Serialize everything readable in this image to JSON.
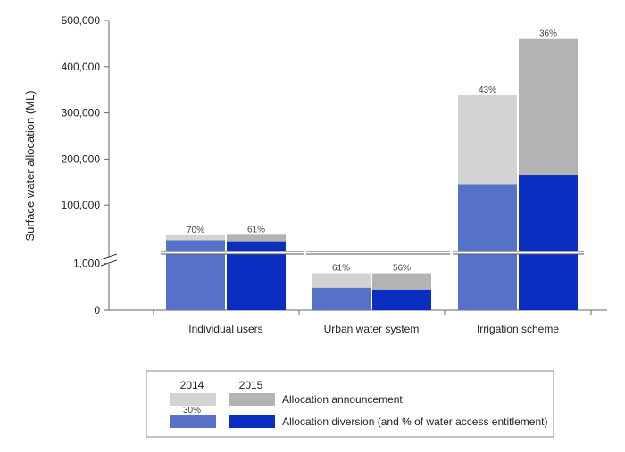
{
  "chart_data": {
    "type": "bar",
    "ylabel": "Surface water allocation (ML)",
    "categories": [
      "Individual users",
      "Urban water system",
      "Irrigation scheme"
    ],
    "axis_break": true,
    "lower_segment": {
      "ylim": [
        0,
        1200
      ],
      "ticks": [
        0,
        1000
      ],
      "tick_labels": [
        "0",
        "1,000"
      ]
    },
    "upper_segment": {
      "ylim": [
        0,
        500000
      ],
      "ticks": [
        100000,
        200000,
        300000,
        400000,
        500000
      ],
      "tick_labels": [
        "100,000",
        "200,000",
        "300,000",
        "400,000",
        "500,000"
      ]
    },
    "series": [
      {
        "name": "2014",
        "announcement": [
          35000,
          790,
          338000
        ],
        "diversion": [
          24500,
          482,
          146000
        ],
        "pct_labels": [
          "70%",
          "61%",
          "43%"
        ]
      },
      {
        "name": "2015",
        "announcement": [
          36000,
          790,
          460000
        ],
        "diversion": [
          22000,
          443,
          166000
        ],
        "pct_labels": [
          "61%",
          "56%",
          "36%"
        ]
      }
    ],
    "legend": {
      "year_labels": [
        "2014",
        "2015"
      ],
      "rows": [
        "Allocation announcement",
        "Allocation diversion (and % of water access entitlement)"
      ],
      "sample_pct": "30%",
      "placement": "bottom"
    },
    "colors": {
      "announcement_2014": "#d3d3d3",
      "announcement_2015": "#b3b3b3",
      "diversion_2014": "#5672c8",
      "diversion_2015": "#0a2fc0"
    }
  }
}
